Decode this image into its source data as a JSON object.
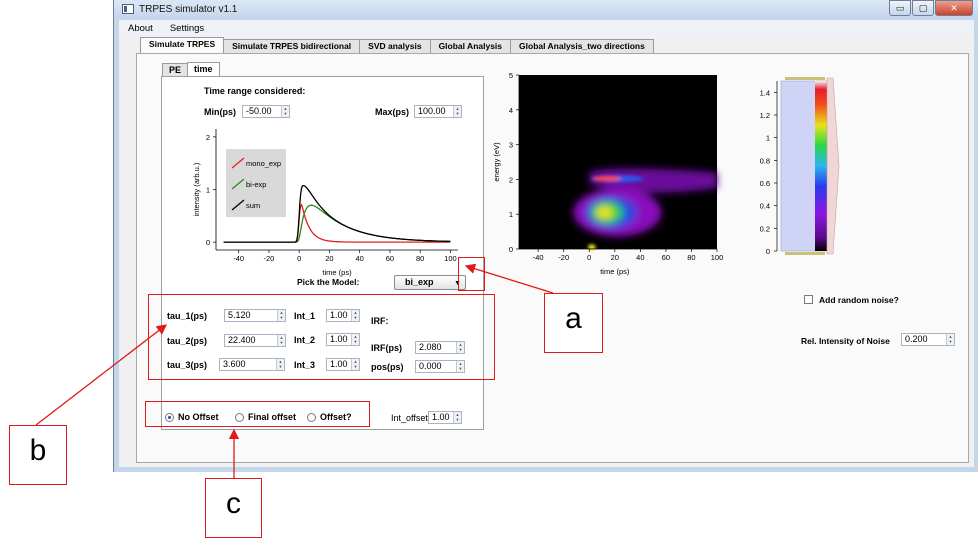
{
  "window": {
    "title": "TRPES simulator v1.1",
    "min": "▭",
    "max": "▢",
    "close": "✕"
  },
  "menu": [
    "About",
    "Settings"
  ],
  "main_tabs": [
    "Simulate TRPES",
    "Simulate TRPES bidirectional",
    "SVD analysis",
    "Global Analysis",
    "Global Analysis_two directions"
  ],
  "sub_tabs": [
    "PE",
    "time"
  ],
  "time_range": {
    "heading": "Time range considered:",
    "min_label": "Min(ps)",
    "min_value": "-50.00",
    "max_label": "Max(ps)",
    "max_value": "100.00"
  },
  "model": {
    "label": "Pick the Model:",
    "selected": "bi_exp"
  },
  "params": {
    "tau1_label": "tau_1(ps)",
    "tau1_value": "5.120",
    "tau2_label": "tau_2(ps)",
    "tau2_value": "22.400",
    "tau3_label": "tau_3(ps)",
    "tau3_value": "3.600",
    "int1_label": "Int_1",
    "int1_value": "1.00",
    "int2_label": "Int_2",
    "int2_value": "1.00",
    "int3_label": "Int_3",
    "int3_value": "1.00",
    "irf_heading": "IRF:",
    "irf_label": "IRF(ps)",
    "irf_value": "2.080",
    "pos_label": "pos(ps)",
    "pos_value": "0.000"
  },
  "offset": {
    "options": [
      "No Offset",
      "Final offset",
      "Offset?"
    ],
    "selected_index": 0,
    "int_label": "Int_offset",
    "int_value": "1.00"
  },
  "noise": {
    "checkbox_label": "Add random noise?",
    "checked": false,
    "rel_label": "Rel. Intensity of Noise",
    "rel_value": "0.200"
  },
  "annotations": [
    "a",
    "b",
    "c"
  ],
  "chart_data": [
    {
      "type": "line",
      "xlabel": "time (ps)",
      "ylabel": "intensity (arb.u.)",
      "xlim": [
        -55,
        105
      ],
      "ylim": [
        -0.15,
        2.15
      ],
      "xticks": [
        "-40",
        "-20",
        "0",
        "20",
        "40",
        "60",
        "80",
        "100"
      ],
      "yticks": [
        "0",
        "1",
        "2"
      ],
      "legend_position": "left",
      "series": [
        {
          "name": "mono_exp",
          "color": "#e81e1e"
        },
        {
          "name": "bi-exp",
          "color": "#2a8a1a"
        },
        {
          "name": "sum",
          "color": "#000000"
        }
      ],
      "model": {
        "irf_ps": 2.08,
        "pos_ps": 0.0,
        "tau1_ps": 5.12,
        "tau2_ps": 22.4,
        "tau3_ps": 3.6
      }
    },
    {
      "type": "heatmap",
      "xlabel": "time (ps)",
      "ylabel": "energy (eV)",
      "xlim": [
        -55,
        100
      ],
      "ylim": [
        0,
        5
      ],
      "xticks": [
        "-40",
        "-20",
        "0",
        "20",
        "40",
        "60",
        "80",
        "100"
      ],
      "yticks": [
        "0",
        "1",
        "2",
        "3",
        "4",
        "5"
      ],
      "colorbar_ticks": [
        "0",
        "0.2",
        "0.4",
        "0.6",
        "0.8",
        "1",
        "1.2",
        "1.4"
      ],
      "colorbar_range": [
        0,
        1.5
      ]
    }
  ]
}
